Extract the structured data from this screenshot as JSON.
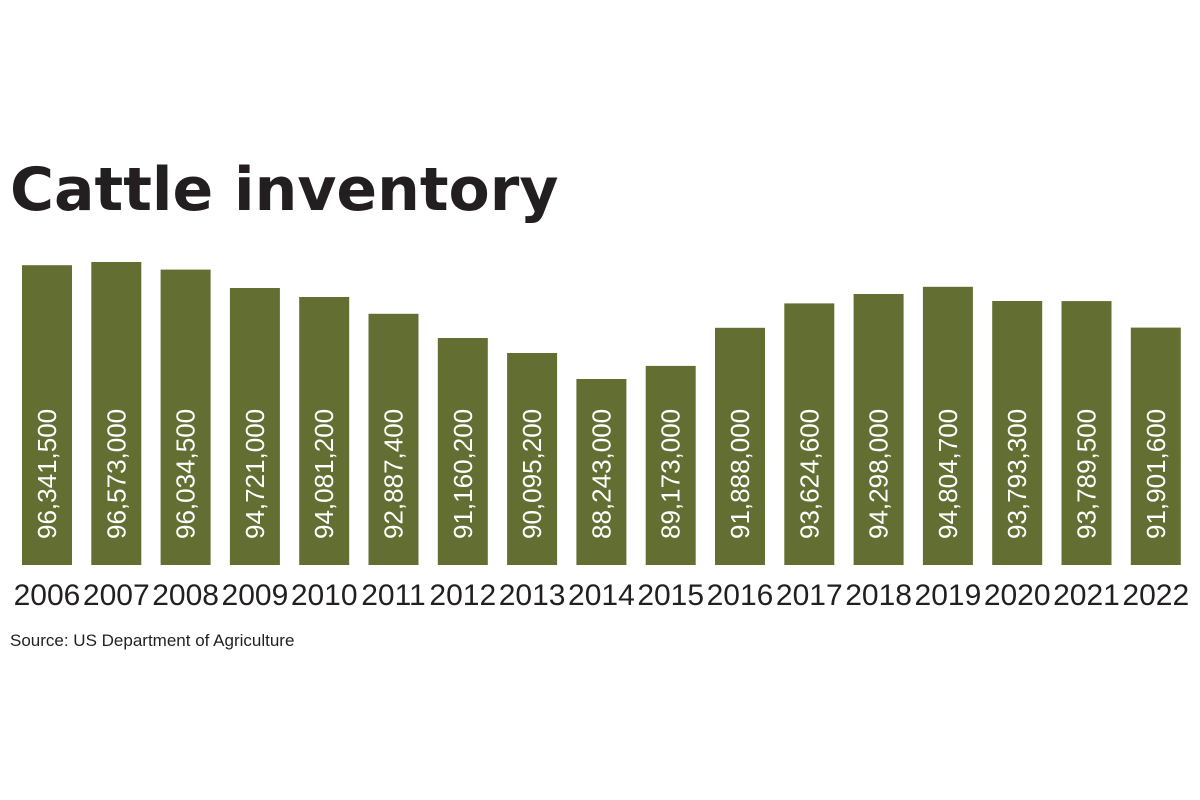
{
  "chart_data": {
    "type": "bar",
    "title": "Cattle inventory",
    "source": "Source: US Department of Agriculture",
    "categories": [
      "2006",
      "2007",
      "2008",
      "2009",
      "2010",
      "2011",
      "2012",
      "2013",
      "2014",
      "2015",
      "2016",
      "2017",
      "2018",
      "2019",
      "2020",
      "2021",
      "2022"
    ],
    "values": [
      96341500,
      96573000,
      96034500,
      94721000,
      94081200,
      92887400,
      91160200,
      90095200,
      88243000,
      89173000,
      91888000,
      93624600,
      94298000,
      94804700,
      93793300,
      93789500,
      91901600
    ],
    "value_labels": [
      "96,341,500",
      "96,573,000",
      "96,034,500",
      "94,721,000",
      "94,081,200",
      "92,887,400",
      "91,160,200",
      "90,095,200",
      "88,243,000",
      "89,173,000",
      "91,888,000",
      "93,624,600",
      "94,298,000",
      "94,804,700",
      "93,793,300",
      "93,789,500",
      "91,901,600"
    ],
    "xlabel": "",
    "ylabel": "",
    "ylim": [
      75000000,
      97000000
    ],
    "grid": false,
    "legend": "none",
    "value_label_orientation": "vertical",
    "colors": {
      "bar": "#636f32",
      "label": "#ffffff",
      "text": "#231f20"
    }
  }
}
